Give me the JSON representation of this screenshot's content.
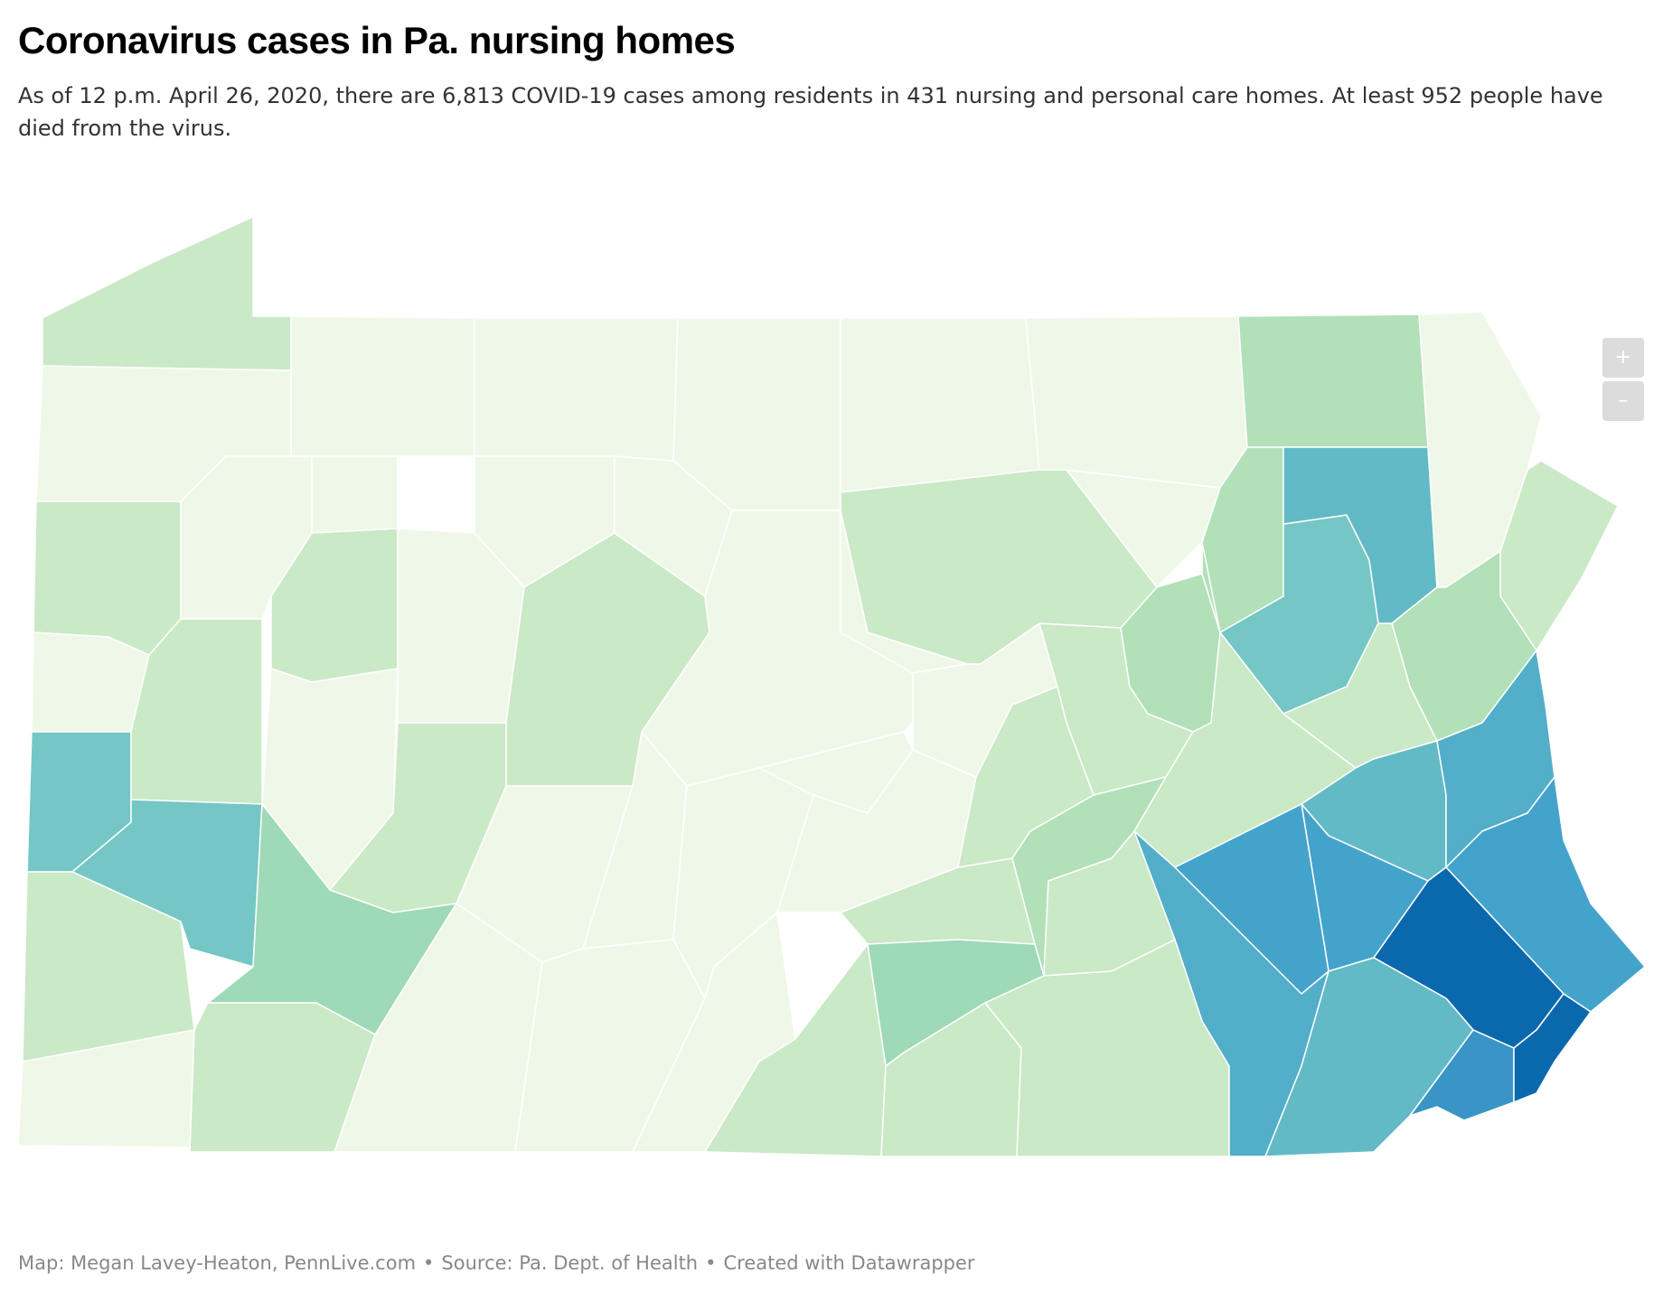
{
  "title": "Coronavirus cases in Pa. nursing homes",
  "subtitle": "As of 12 p.m. April 26, 2020, there are 6,813 COVID-19 cases among residents in 431 nursing and personal care homes. At least 952 people have died from the virus.",
  "zoom": {
    "in_label": "+",
    "out_label": "–"
  },
  "footer": {
    "credit": "Map: Megan Lavey-Heaton, PennLive.com",
    "source": "Source: Pa. Dept. of Health",
    "tool": "Created with Datawrapper",
    "separator": "•"
  },
  "colors": {
    "lightest": "#eff8e8",
    "light_1": "#cae9c6",
    "light_2": "#b2e0b9",
    "mid_1": "#9ed9b8",
    "teal_1": "#74c7c5",
    "teal_2": "#63bac7",
    "blue_1": "#52aec9",
    "blue_2": "#44a3cb",
    "blue_3": "#3995c6",
    "darkest": "#0a68ad"
  }
}
